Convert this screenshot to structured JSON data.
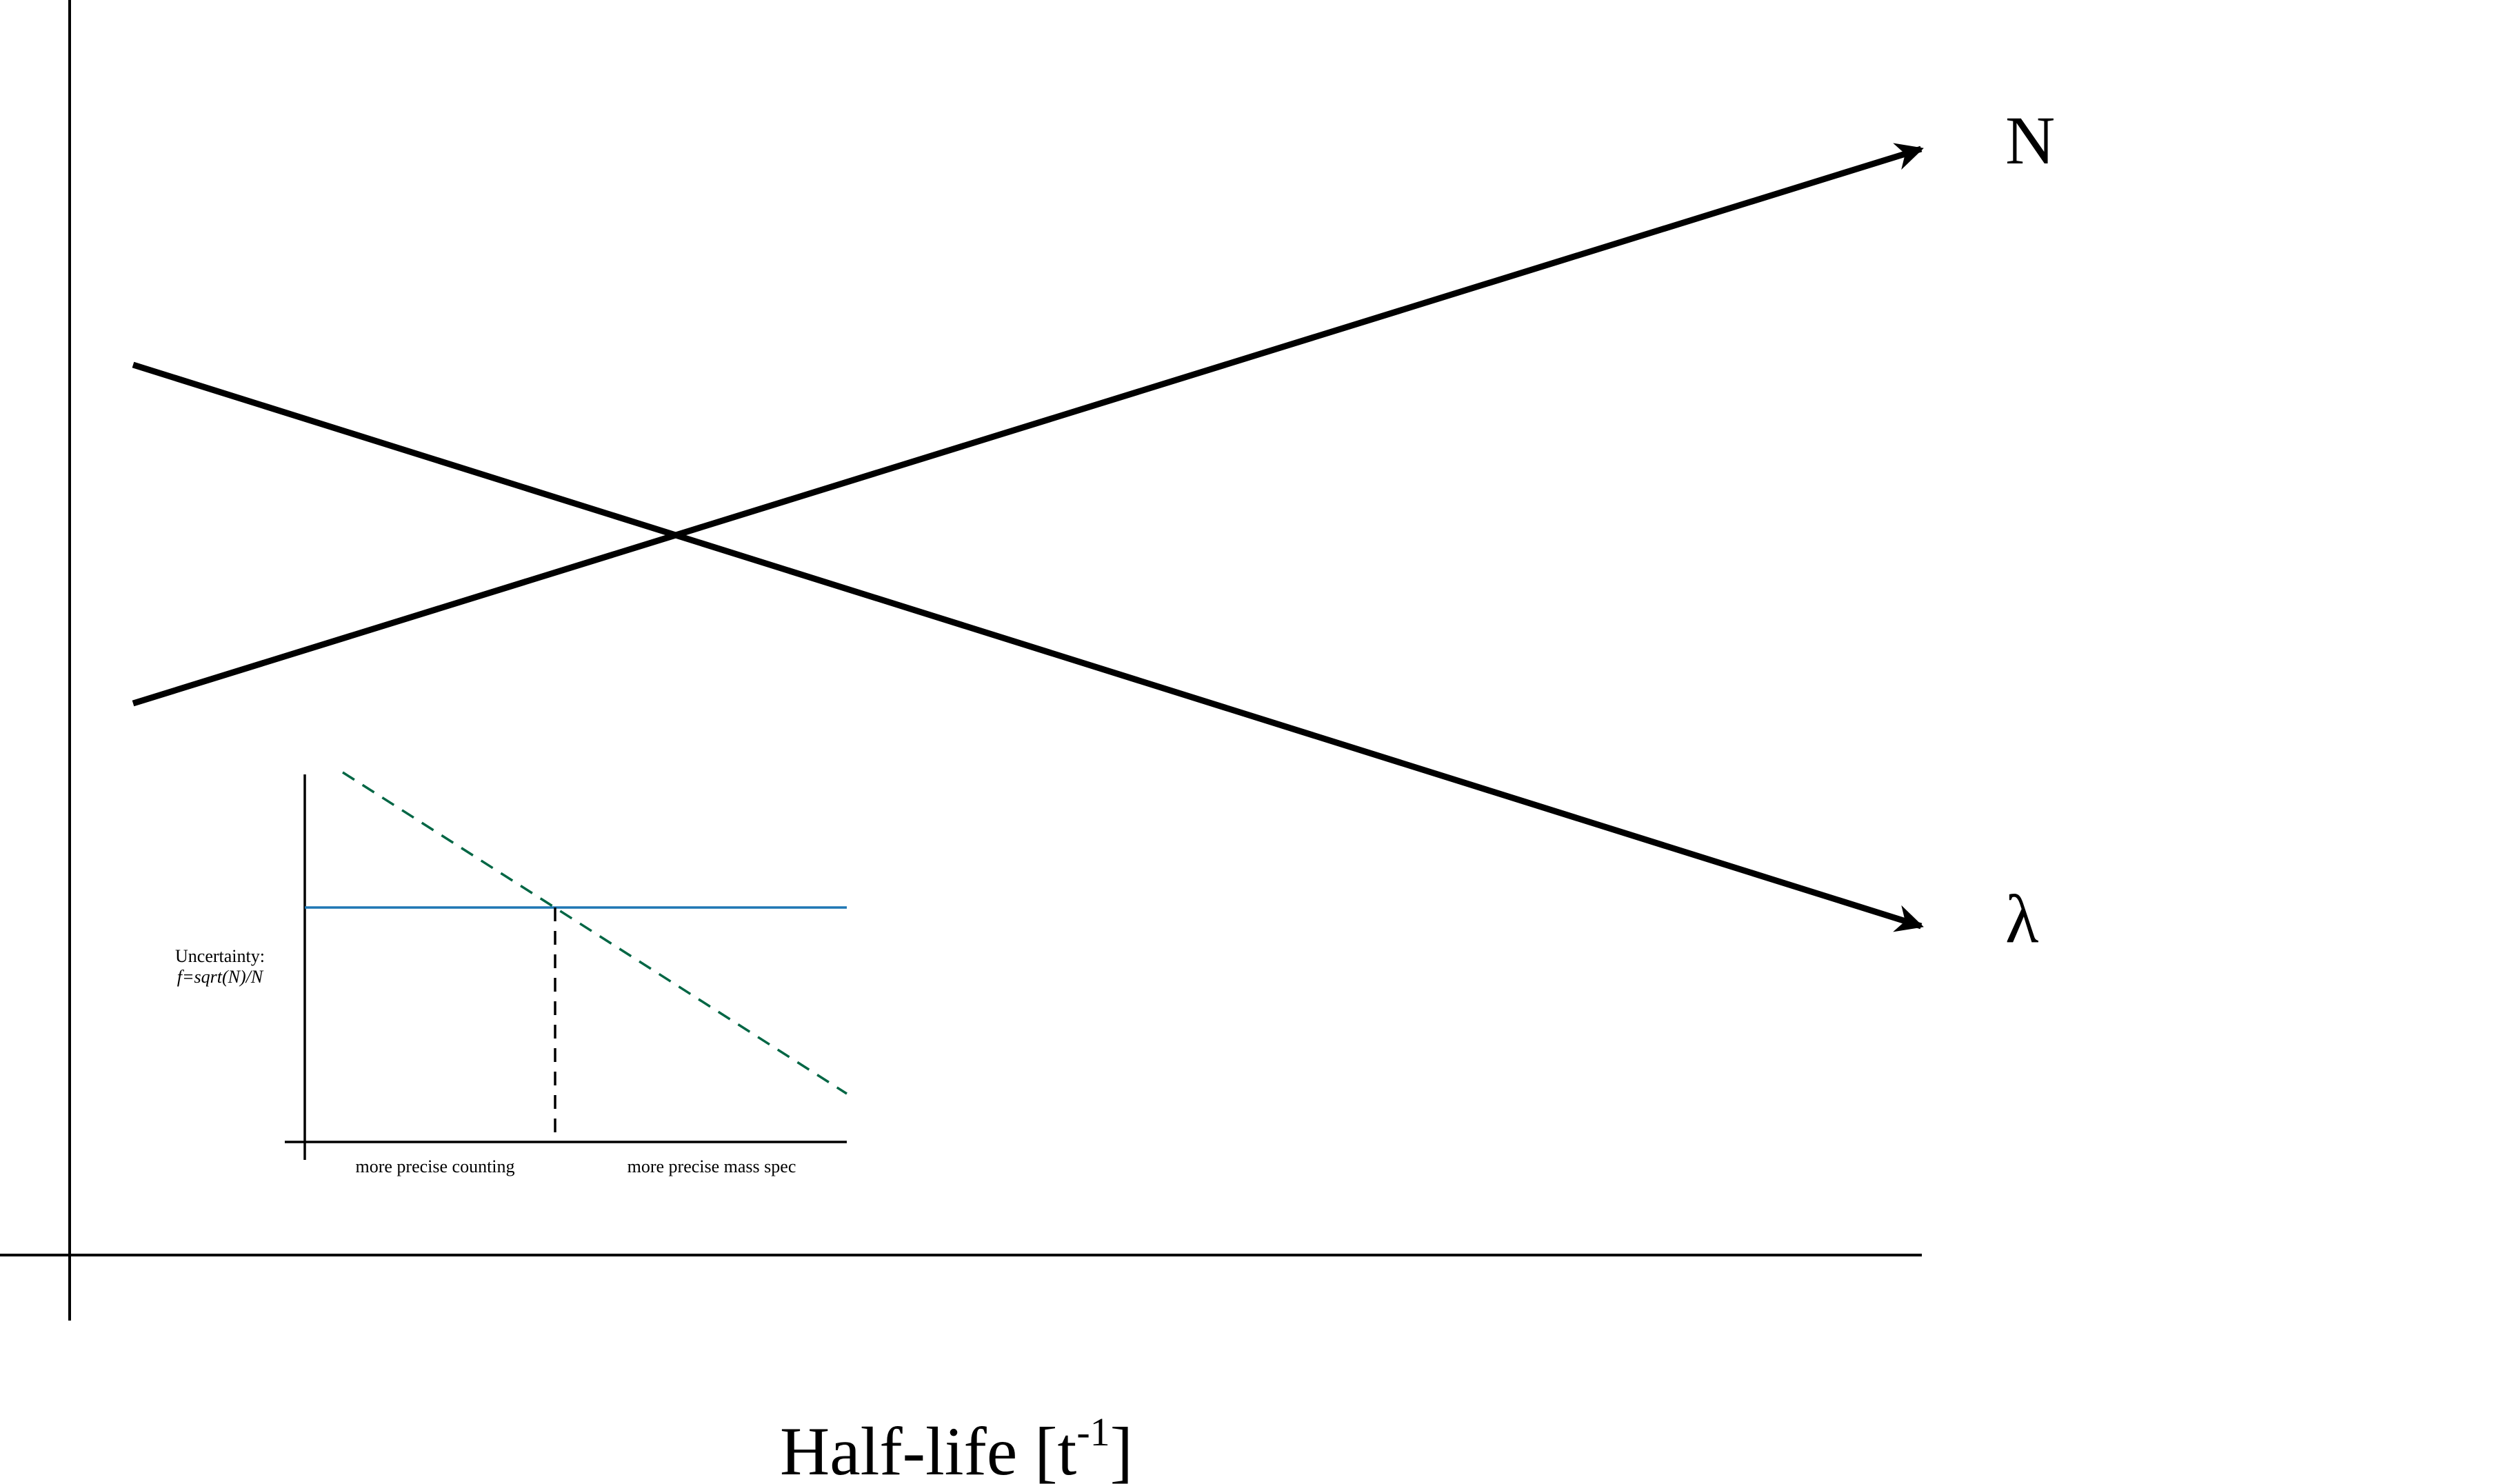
{
  "main_axes": {
    "x_label_prefix": "Half-life [t",
    "x_label_superscript": "-1",
    "x_label_suffix": "]"
  },
  "curves": {
    "increasing_label": "N",
    "decreasing_label": "λ"
  },
  "inset": {
    "y_label_line1": "Uncertainty:",
    "y_label_line2": "f=sqrt(N)/N",
    "left_region_label": "more precise counting",
    "right_region_label": "more precise mass spec",
    "colors": {
      "solid_line": "#1f77b4",
      "dashed_line": "#006644",
      "crossover_line": "#000000"
    }
  }
}
